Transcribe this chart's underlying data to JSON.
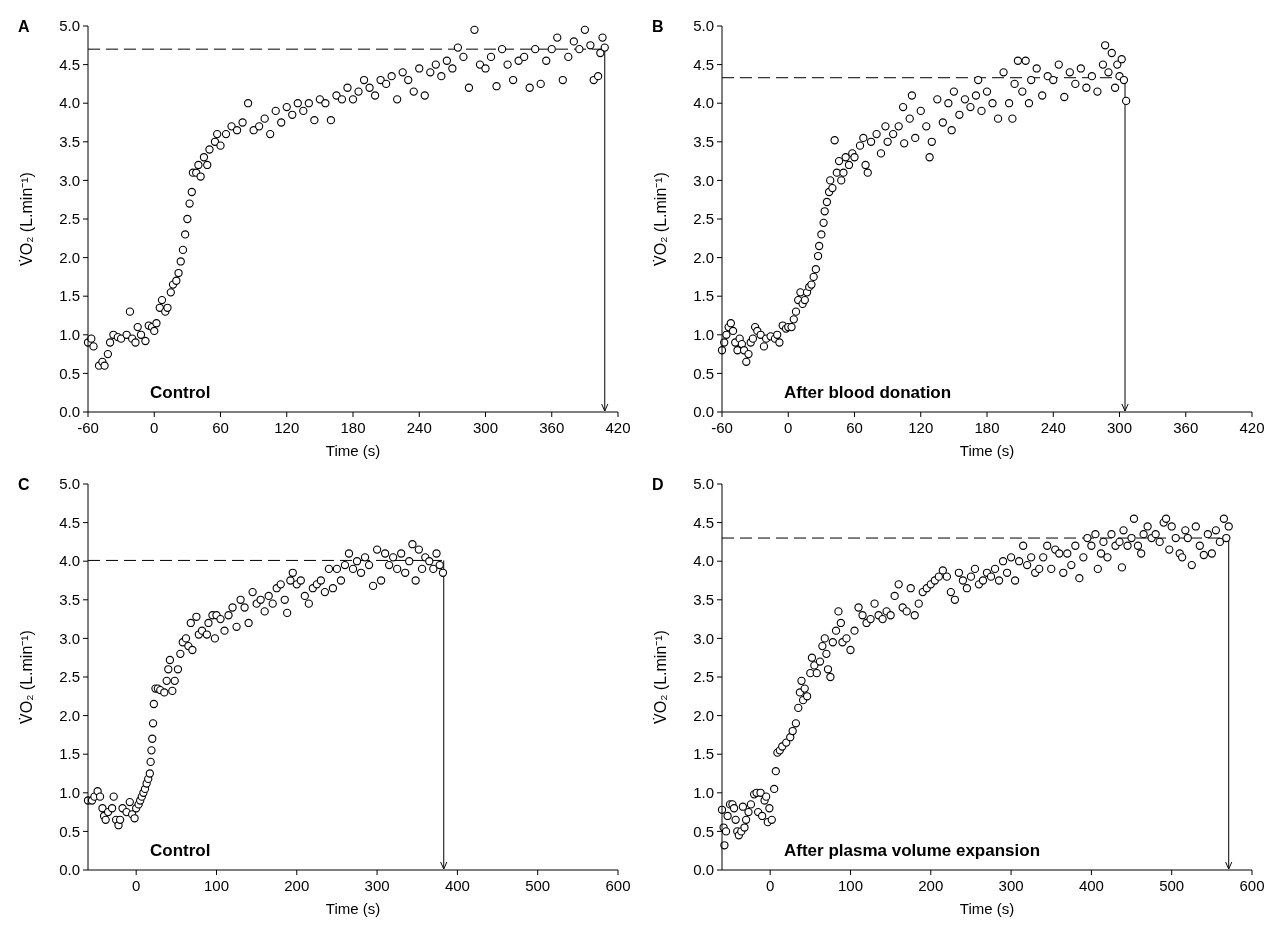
{
  "chart_data": [
    {
      "type": "scatter",
      "title": "A",
      "xlabel": "Time (s)",
      "ylabel": "V̇O₂ (L.min⁻¹)",
      "marker": "circle",
      "annotations": [
        "Control"
      ],
      "xlim": [
        -60,
        420
      ],
      "xticks": [
        -60,
        0,
        60,
        120,
        180,
        240,
        300,
        360,
        420
      ],
      "ylim": [
        0,
        5
      ],
      "yticks": [
        {
          "value": 0,
          "label": "0.0"
        },
        {
          "value": 0.5,
          "label": "0.5"
        },
        {
          "value": 1,
          "label": "1.0"
        },
        {
          "value": 1.5,
          "label": "1.5"
        },
        {
          "value": 2,
          "label": "2.0"
        },
        {
          "value": 2.5,
          "label": "2.5"
        },
        {
          "value": 3,
          "label": "3.0"
        },
        {
          "value": 3.5,
          "label": "3.5"
        },
        {
          "value": 4,
          "label": "4.0"
        },
        {
          "value": 4.5,
          "label": "4.5"
        },
        {
          "value": 5,
          "label": "5.0"
        }
      ],
      "ref_lines": [
        {
          "axis": "y",
          "value": 4.7,
          "line_style": "dashed"
        },
        {
          "axis": "x",
          "value": 408,
          "line_style": "solid"
        }
      ],
      "series": [
        {
          "color": "#000000",
          "x": [
            -60,
            -57,
            -55,
            -50,
            -47,
            -45,
            -42,
            -40,
            -37,
            -33,
            -30,
            -25,
            -22,
            -20,
            -17,
            -15,
            -12,
            -8,
            -5,
            -2,
            0,
            2,
            5,
            7,
            10,
            12,
            15,
            17,
            20,
            22,
            24,
            26,
            28,
            30,
            32,
            34,
            35,
            38,
            40,
            42,
            45,
            48,
            50,
            55,
            57,
            60,
            65,
            70,
            75,
            80,
            85,
            90,
            95,
            100,
            105,
            110,
            115,
            120,
            125,
            130,
            135,
            140,
            145,
            150,
            155,
            160,
            165,
            170,
            175,
            180,
            185,
            190,
            195,
            200,
            205,
            210,
            215,
            220,
            225,
            230,
            235,
            240,
            245,
            250,
            255,
            260,
            265,
            270,
            275,
            280,
            285,
            290,
            295,
            300,
            305,
            310,
            315,
            320,
            325,
            330,
            335,
            340,
            345,
            350,
            355,
            360,
            365,
            370,
            375,
            380,
            385,
            390,
            395,
            398,
            402,
            404,
            406,
            408
          ],
          "values": [
            0.9,
            0.95,
            0.85,
            0.6,
            0.65,
            0.6,
            0.75,
            0.9,
            1.0,
            0.97,
            0.95,
            1.0,
            1.3,
            0.95,
            0.9,
            1.1,
            1.0,
            0.92,
            1.12,
            1.1,
            1.05,
            1.15,
            1.35,
            1.45,
            1.3,
            1.35,
            1.55,
            1.65,
            1.7,
            1.8,
            1.95,
            2.1,
            2.3,
            2.5,
            2.7,
            2.85,
            3.1,
            3.1,
            3.2,
            3.05,
            3.3,
            3.2,
            3.4,
            3.5,
            3.6,
            3.45,
            3.6,
            3.7,
            3.65,
            3.75,
            4.0,
            3.65,
            3.7,
            3.8,
            3.6,
            3.9,
            3.75,
            3.95,
            3.85,
            4.0,
            3.9,
            4.0,
            3.78,
            4.05,
            4.0,
            3.78,
            4.1,
            4.05,
            4.2,
            4.05,
            4.15,
            4.3,
            4.2,
            4.1,
            4.3,
            4.25,
            4.35,
            4.05,
            4.4,
            4.3,
            4.15,
            4.45,
            4.1,
            4.4,
            4.5,
            4.35,
            4.55,
            4.45,
            4.72,
            4.6,
            4.2,
            4.95,
            4.5,
            4.45,
            4.6,
            4.22,
            4.7,
            4.5,
            4.3,
            4.55,
            4.6,
            4.2,
            4.7,
            4.25,
            4.55,
            4.7,
            4.85,
            4.3,
            4.6,
            4.8,
            4.7,
            4.95,
            4.75,
            4.3,
            4.35,
            4.65,
            4.85,
            4.72
          ]
        }
      ]
    },
    {
      "type": "scatter",
      "title": "B",
      "xlabel": "Time (s)",
      "ylabel": "V̇O₂ (L.min⁻¹)",
      "marker": "circle",
      "annotations": [
        "After blood donation"
      ],
      "xlim": [
        -60,
        420
      ],
      "xticks": [
        -60,
        0,
        60,
        120,
        180,
        240,
        300,
        360,
        420
      ],
      "ylim": [
        0,
        5
      ],
      "yticks": [
        {
          "value": 0,
          "label": "0.0"
        },
        {
          "value": 0.5,
          "label": "0.5"
        },
        {
          "value": 1,
          "label": "1.0"
        },
        {
          "value": 1.5,
          "label": "1.5"
        },
        {
          "value": 2,
          "label": "2.0"
        },
        {
          "value": 2.5,
          "label": "2.5"
        },
        {
          "value": 3,
          "label": "3.0"
        },
        {
          "value": 3.5,
          "label": "3.5"
        },
        {
          "value": 4,
          "label": "4.0"
        },
        {
          "value": 4.5,
          "label": "4.5"
        },
        {
          "value": 5,
          "label": "5.0"
        }
      ],
      "ref_lines": [
        {
          "axis": "y",
          "value": 4.33,
          "line_style": "dashed"
        },
        {
          "axis": "x",
          "value": 305,
          "line_style": "solid"
        }
      ],
      "series": [
        {
          "color": "#000000",
          "x": [
            -60,
            -58,
            -56,
            -54,
            -52,
            -50,
            -48,
            -46,
            -44,
            -42,
            -40,
            -38,
            -36,
            -34,
            -32,
            -30,
            -28,
            -25,
            -22,
            -20,
            -16,
            -12,
            -10,
            -8,
            -5,
            -2,
            0,
            3,
            5,
            7,
            9,
            11,
            13,
            15,
            17,
            19,
            21,
            23,
            25,
            27,
            28,
            30,
            32,
            33,
            35,
            37,
            38,
            40,
            42,
            44,
            46,
            48,
            50,
            52,
            55,
            58,
            60,
            65,
            68,
            70,
            72,
            75,
            80,
            84,
            88,
            90,
            95,
            100,
            104,
            105,
            110,
            112,
            115,
            120,
            125,
            128,
            130,
            135,
            140,
            145,
            148,
            150,
            155,
            160,
            165,
            170,
            172,
            175,
            180,
            185,
            190,
            195,
            200,
            203,
            205,
            208,
            212,
            215,
            218,
            220,
            225,
            230,
            235,
            240,
            245,
            250,
            255,
            260,
            265,
            270,
            275,
            280,
            285,
            287,
            290,
            293,
            296,
            298,
            300,
            302,
            304,
            306
          ],
          "values": [
            0.8,
            0.9,
            1.0,
            1.1,
            1.15,
            1.05,
            0.9,
            0.8,
            0.95,
            0.88,
            0.8,
            0.65,
            0.75,
            0.9,
            0.95,
            1.1,
            1.05,
            1.0,
            0.85,
            0.95,
            0.98,
            0.95,
            1.0,
            0.9,
            1.12,
            1.08,
            1.1,
            1.1,
            1.2,
            1.3,
            1.45,
            1.55,
            1.4,
            1.45,
            1.55,
            1.62,
            1.65,
            1.75,
            1.85,
            2.02,
            2.15,
            2.3,
            2.45,
            2.6,
            2.72,
            2.85,
            3.0,
            2.9,
            3.52,
            3.1,
            3.25,
            3.0,
            3.1,
            3.3,
            3.2,
            3.35,
            3.3,
            3.45,
            3.55,
            3.2,
            3.1,
            3.5,
            3.6,
            3.35,
            3.7,
            3.5,
            3.6,
            3.7,
            3.95,
            3.48,
            3.8,
            4.1,
            3.55,
            3.9,
            3.7,
            3.3,
            3.5,
            4.05,
            3.75,
            4.0,
            3.65,
            4.15,
            3.85,
            4.05,
            3.95,
            4.1,
            4.3,
            3.9,
            4.15,
            4.0,
            3.8,
            4.4,
            4.0,
            3.8,
            4.25,
            4.55,
            4.15,
            4.55,
            4.0,
            4.3,
            4.45,
            4.1,
            4.35,
            4.3,
            4.5,
            4.08,
            4.4,
            4.25,
            4.45,
            4.2,
            4.35,
            4.15,
            4.5,
            4.75,
            4.4,
            4.65,
            4.2,
            4.5,
            4.35,
            4.57,
            4.3,
            4.03
          ]
        }
      ]
    },
    {
      "type": "scatter",
      "title": "C",
      "xlabel": "Time (s)",
      "ylabel": "V̇O₂ (L.min⁻¹)",
      "marker": "circle",
      "annotations": [
        "Control"
      ],
      "xlim": [
        -60,
        600
      ],
      "xticks": [
        0,
        100,
        200,
        300,
        400,
        500,
        600
      ],
      "ylim": [
        0,
        5
      ],
      "yticks": [
        {
          "value": 0,
          "label": "0.0"
        },
        {
          "value": 0.5,
          "label": "0.5"
        },
        {
          "value": 1,
          "label": "1.0"
        },
        {
          "value": 1.5,
          "label": "1.5"
        },
        {
          "value": 2,
          "label": "2.0"
        },
        {
          "value": 2.5,
          "label": "2.5"
        },
        {
          "value": 3,
          "label": "3.0"
        },
        {
          "value": 3.5,
          "label": "3.5"
        },
        {
          "value": 4,
          "label": "4.0"
        },
        {
          "value": 4.5,
          "label": "4.5"
        },
        {
          "value": 5,
          "label": "5.0"
        }
      ],
      "ref_lines": [
        {
          "axis": "y",
          "value": 4.01,
          "line_style": "dashed"
        },
        {
          "axis": "x",
          "value": 383,
          "line_style": "solid"
        }
      ],
      "series": [
        {
          "color": "#000000",
          "x": [
            -60,
            -55,
            -52,
            -48,
            -45,
            -42,
            -40,
            -38,
            -35,
            -30,
            -28,
            -25,
            -22,
            -20,
            -17,
            -12,
            -8,
            -5,
            -2,
            0,
            3,
            5,
            7,
            9,
            11,
            13,
            15,
            17,
            18,
            19,
            20,
            21,
            22,
            24,
            27,
            30,
            35,
            38,
            40,
            42,
            45,
            48,
            52,
            55,
            58,
            62,
            65,
            68,
            70,
            75,
            78,
            82,
            88,
            90,
            95,
            98,
            100,
            105,
            110,
            115,
            120,
            125,
            130,
            135,
            140,
            145,
            150,
            155,
            160,
            165,
            170,
            175,
            180,
            185,
            188,
            192,
            195,
            200,
            205,
            210,
            215,
            220,
            225,
            230,
            235,
            240,
            245,
            250,
            255,
            260,
            265,
            270,
            275,
            280,
            285,
            290,
            295,
            300,
            305,
            310,
            315,
            320,
            325,
            330,
            335,
            340,
            344,
            348,
            352,
            356,
            360,
            365,
            370,
            374,
            378,
            382
          ],
          "values": [
            0.9,
            0.9,
            0.95,
            1.02,
            0.95,
            0.8,
            0.7,
            0.65,
            0.75,
            0.8,
            0.95,
            0.65,
            0.58,
            0.65,
            0.8,
            0.75,
            0.88,
            0.72,
            0.67,
            0.8,
            0.85,
            0.9,
            0.95,
            1.0,
            1.05,
            1.12,
            1.18,
            1.25,
            1.4,
            1.55,
            1.7,
            1.9,
            2.15,
            2.35,
            2.35,
            2.33,
            2.3,
            2.45,
            2.6,
            2.72,
            2.32,
            2.45,
            2.6,
            2.8,
            2.95,
            3.0,
            2.9,
            3.2,
            2.85,
            3.28,
            3.05,
            3.1,
            3.05,
            3.2,
            3.3,
            3.0,
            3.3,
            3.25,
            3.1,
            3.3,
            3.4,
            3.15,
            3.5,
            3.4,
            3.2,
            3.6,
            3.45,
            3.5,
            3.35,
            3.55,
            3.45,
            3.65,
            3.7,
            3.5,
            3.33,
            3.75,
            3.85,
            3.7,
            3.75,
            3.55,
            3.45,
            3.65,
            3.7,
            3.75,
            3.6,
            3.9,
            3.65,
            3.9,
            3.75,
            3.95,
            4.1,
            3.9,
            4.0,
            3.85,
            4.05,
            3.95,
            3.68,
            4.15,
            3.75,
            4.1,
            3.95,
            4.05,
            3.9,
            4.1,
            3.85,
            4.0,
            4.22,
            3.75,
            4.15,
            3.9,
            4.05,
            4.0,
            3.9,
            4.1,
            3.95,
            3.85
          ]
        }
      ]
    },
    {
      "type": "scatter",
      "title": "D",
      "xlabel": "Time (s)",
      "ylabel": "V̇O₂ (L.min⁻¹)",
      "marker": "circle",
      "annotations": [
        "After plasma volume expansion"
      ],
      "xlim": [
        -60,
        600
      ],
      "xticks": [
        0,
        100,
        200,
        300,
        400,
        500,
        600
      ],
      "ylim": [
        0,
        5
      ],
      "yticks": [
        {
          "value": 0,
          "label": "0.0"
        },
        {
          "value": 0.5,
          "label": "0.5"
        },
        {
          "value": 1,
          "label": "1.0"
        },
        {
          "value": 1.5,
          "label": "1.5"
        },
        {
          "value": 2,
          "label": "2.0"
        },
        {
          "value": 2.5,
          "label": "2.5"
        },
        {
          "value": 3,
          "label": "3.0"
        },
        {
          "value": 3.5,
          "label": "3.5"
        },
        {
          "value": 4,
          "label": "4.0"
        },
        {
          "value": 4.5,
          "label": "4.5"
        },
        {
          "value": 5,
          "label": "5.0"
        }
      ],
      "ref_lines": [
        {
          "axis": "y",
          "value": 4.3,
          "line_style": "dashed"
        },
        {
          "axis": "x",
          "value": 571,
          "line_style": "solid"
        }
      ],
      "series": [
        {
          "color": "#000000",
          "x": [
            -60,
            -58,
            -57,
            -55,
            -53,
            -50,
            -47,
            -45,
            -43,
            -41,
            -39,
            -36,
            -34,
            -32,
            -30,
            -27,
            -24,
            -20,
            -17,
            -15,
            -12,
            -10,
            -7,
            -5,
            -3,
            -1,
            2,
            5,
            7,
            9,
            12,
            15,
            20,
            25,
            28,
            32,
            35,
            37,
            39,
            41,
            43,
            46,
            50,
            52,
            55,
            58,
            62,
            65,
            68,
            70,
            72,
            75,
            78,
            82,
            85,
            88,
            90,
            95,
            100,
            105,
            110,
            115,
            120,
            125,
            130,
            135,
            140,
            145,
            150,
            155,
            160,
            165,
            170,
            175,
            180,
            185,
            190,
            195,
            200,
            205,
            210,
            215,
            220,
            225,
            230,
            235,
            240,
            245,
            250,
            255,
            260,
            265,
            270,
            275,
            280,
            285,
            290,
            295,
            300,
            305,
            310,
            315,
            320,
            325,
            330,
            335,
            340,
            345,
            350,
            355,
            360,
            365,
            370,
            375,
            380,
            385,
            390,
            395,
            400,
            405,
            408,
            412,
            415,
            420,
            425,
            430,
            435,
            438,
            440,
            445,
            450,
            453,
            458,
            462,
            465,
            470,
            475,
            480,
            485,
            490,
            493,
            497,
            500,
            505,
            510,
            513,
            517,
            520,
            525,
            530,
            535,
            540,
            545,
            550,
            555,
            560,
            565,
            568,
            571
          ],
          "values": [
            0.78,
            0.55,
            0.32,
            0.5,
            0.7,
            0.85,
            0.85,
            0.8,
            0.65,
            0.5,
            0.45,
            0.5,
            0.82,
            0.55,
            0.65,
            0.75,
            0.85,
            0.98,
            1.0,
            0.75,
            1.0,
            0.7,
            0.9,
            0.95,
            0.62,
            0.8,
            0.65,
            1.05,
            1.28,
            1.52,
            1.55,
            1.6,
            1.65,
            1.72,
            1.8,
            1.9,
            2.1,
            2.3,
            2.45,
            2.2,
            2.35,
            2.25,
            2.55,
            2.75,
            2.65,
            2.55,
            2.7,
            2.9,
            3.0,
            2.8,
            2.6,
            2.5,
            2.95,
            3.1,
            3.35,
            3.2,
            2.95,
            3.0,
            2.85,
            3.1,
            3.4,
            3.3,
            3.2,
            3.25,
            3.45,
            3.3,
            3.25,
            3.35,
            3.3,
            3.55,
            3.7,
            3.4,
            3.35,
            3.65,
            3.3,
            3.45,
            3.6,
            3.65,
            3.7,
            3.75,
            3.8,
            3.88,
            3.8,
            3.6,
            3.5,
            3.85,
            3.75,
            3.65,
            3.8,
            3.9,
            3.7,
            3.75,
            3.85,
            3.8,
            3.9,
            3.75,
            4.0,
            3.85,
            4.05,
            3.75,
            4.0,
            4.2,
            3.95,
            4.05,
            3.85,
            3.9,
            4.05,
            4.2,
            3.9,
            4.15,
            4.1,
            3.85,
            4.1,
            3.95,
            4.2,
            3.78,
            4.05,
            4.3,
            4.2,
            4.35,
            3.9,
            4.1,
            4.25,
            4.05,
            4.35,
            4.2,
            4.25,
            3.92,
            4.4,
            4.2,
            4.3,
            4.55,
            4.2,
            4.1,
            4.35,
            4.45,
            4.3,
            4.35,
            4.25,
            4.5,
            4.55,
            4.15,
            4.45,
            4.3,
            4.1,
            4.05,
            4.4,
            4.3,
            3.95,
            4.45,
            4.2,
            4.08,
            4.35,
            4.1,
            4.4,
            4.25,
            4.55,
            4.3,
            4.45
          ]
        }
      ]
    }
  ]
}
